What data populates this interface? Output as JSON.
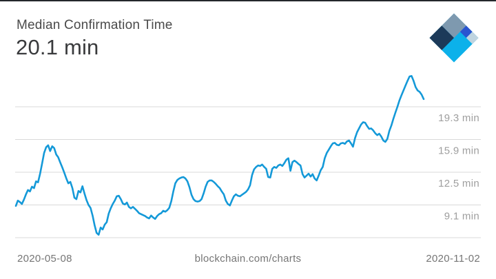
{
  "header": {
    "title": "Median Confirmation Time",
    "value": "20.1 min"
  },
  "footer": {
    "start_date": "2020-05-08",
    "watermark": "blockchain.com/charts",
    "end_date": "2020-11-02"
  },
  "logo": {
    "name": "blockchain-com-logo",
    "colors": {
      "navy": "#1c3a59",
      "slate": "#7e99af",
      "royal": "#2a54d0",
      "pale": "#bfd4e0",
      "cyan": "#0cb1ea"
    }
  },
  "colors": {
    "line": "#1499d8",
    "grid": "#d9d9d9",
    "tick_label": "#9e9e9e",
    "footer_label": "#757575",
    "title": "#4a4a4a",
    "value": "#393a3c"
  },
  "chart_data": {
    "type": "line",
    "title": "Median Confirmation Time",
    "current_value_label": "20.1 min",
    "unit": "min",
    "x_start_label": "2020-05-08",
    "x_end_label": "2020-11-02",
    "legend": "none",
    "grid": "horizontal",
    "ylim": [
      4.0,
      23.5
    ],
    "y_ticks": [
      {
        "value": 19.3,
        "label": "19.3 min"
      },
      {
        "value": 15.9,
        "label": "15.9 min"
      },
      {
        "value": 12.5,
        "label": "12.5 min"
      },
      {
        "value": 9.1,
        "label": "9.1 min"
      },
      {
        "value": 5.7,
        "label": ""
      }
    ],
    "values": [
      9.0,
      9.55,
      9.4,
      9.2,
      9.65,
      10.2,
      10.65,
      10.5,
      11.0,
      10.85,
      11.55,
      11.45,
      12.35,
      13.4,
      14.5,
      15.1,
      15.3,
      14.7,
      15.2,
      15.0,
      14.35,
      14.05,
      13.5,
      13.0,
      12.45,
      11.85,
      11.35,
      11.5,
      10.85,
      9.85,
      9.7,
      10.55,
      10.4,
      11.05,
      10.3,
      9.6,
      9.1,
      8.8,
      8.0,
      7.0,
      6.2,
      6.0,
      6.75,
      6.55,
      7.05,
      7.3,
      8.2,
      8.75,
      9.2,
      9.55,
      10.0,
      10.05,
      9.7,
      9.25,
      9.15,
      9.35,
      8.9,
      8.75,
      8.9,
      8.7,
      8.5,
      8.25,
      8.15,
      8.05,
      7.95,
      7.8,
      7.7,
      8.0,
      7.8,
      7.65,
      7.95,
      8.15,
      8.25,
      8.5,
      8.4,
      8.55,
      8.8,
      9.5,
      10.5,
      11.35,
      11.7,
      11.85,
      11.95,
      12.0,
      11.85,
      11.55,
      10.95,
      10.15,
      9.7,
      9.5,
      9.45,
      9.5,
      9.7,
      10.3,
      11.0,
      11.5,
      11.65,
      11.65,
      11.5,
      11.3,
      11.05,
      10.85,
      10.5,
      10.2,
      9.55,
      9.2,
      9.05,
      9.55,
      10.0,
      10.2,
      10.05,
      10.0,
      10.15,
      10.3,
      10.45,
      10.7,
      11.15,
      12.2,
      12.8,
      13.05,
      13.2,
      13.15,
      13.3,
      13.05,
      12.85,
      12.0,
      11.95,
      12.85,
      13.05,
      12.95,
      13.2,
      13.3,
      13.15,
      13.45,
      13.8,
      13.95,
      12.65,
      13.55,
      13.7,
      13.55,
      13.35,
      13.2,
      12.3,
      11.95,
      12.15,
      12.35,
      12.05,
      12.3,
      11.85,
      11.65,
      12.15,
      12.7,
      13.05,
      13.95,
      14.5,
      14.85,
      15.2,
      15.5,
      15.55,
      15.35,
      15.3,
      15.5,
      15.55,
      15.45,
      15.7,
      15.8,
      15.5,
      15.15,
      16.05,
      16.65,
      17.05,
      17.45,
      17.7,
      17.65,
      17.3,
      17.0,
      17.05,
      16.85,
      16.55,
      16.35,
      16.5,
      16.2,
      15.8,
      15.65,
      15.95,
      16.8,
      17.35,
      18.05,
      18.7,
      19.3,
      19.95,
      20.5,
      21.0,
      21.5,
      22.0,
      22.45,
      22.5,
      22.0,
      21.35,
      21.0,
      20.85,
      20.55,
      20.1
    ]
  }
}
